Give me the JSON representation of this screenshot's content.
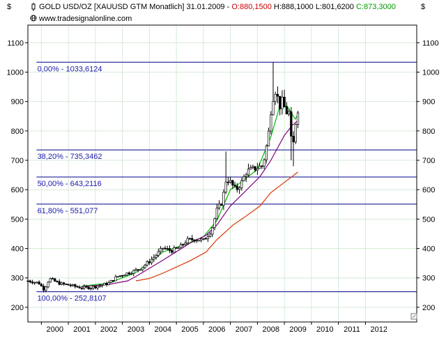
{
  "header": {
    "instrument": "GOLD USD/OZ [XAUUSD GTM  Monatlich]",
    "date": "31.01.2009",
    "open_text": "O:880,1500",
    "high_text": "H:888,1000",
    "low_text": "L:801,6200",
    "close_text": "C:873,3000",
    "source": "www.tradesignalonline.com",
    "currency_left": "$",
    "currency_right": "$",
    "icons": [
      "candlestick-icon",
      "globe-icon"
    ]
  },
  "colors": {
    "open": "#cc0000",
    "close": "#009900",
    "fib_line": "#00008b",
    "fib_label": "#1a1aaa",
    "ma_short": "#00bb00",
    "ma_mid": "#800080",
    "ma_long": "#dd3300",
    "candle": "#000000",
    "grid": "#d6ead6"
  },
  "chart_data": {
    "type": "candlestick",
    "title": "GOLD USD/OZ [XAUUSD GTM  Monatlich]",
    "interval": "monthly",
    "ylim": [
      150,
      1160
    ],
    "xlim": [
      1999.0,
      2013.4
    ],
    "y_ticks": [
      200,
      300,
      400,
      500,
      600,
      700,
      800,
      900,
      1000,
      1100
    ],
    "x_ticks": [
      "2000",
      "2001",
      "2002",
      "2003",
      "2004",
      "2005",
      "2006",
      "2007",
      "2008",
      "2009",
      "2010",
      "2011",
      "2012"
    ],
    "grid": true,
    "fibonacci_levels": [
      {
        "label": "0,00% - 1033,6124",
        "value": 1033.6124
      },
      {
        "label": "38,20% - 735,3462",
        "value": 735.3462
      },
      {
        "label": "50,00% - 643,2116",
        "value": 643.2116
      },
      {
        "label": "61,80% - 551,077",
        "value": 551.077
      },
      {
        "label": "100,00% - 252,8107",
        "value": 252.8107
      }
    ],
    "price_path": [
      [
        1999.0,
        290
      ],
      [
        1999.4,
        283
      ],
      [
        1999.6,
        260
      ],
      [
        1999.8,
        298
      ],
      [
        2000.0,
        288
      ],
      [
        2000.2,
        280
      ],
      [
        2000.5,
        276
      ],
      [
        2000.9,
        268
      ],
      [
        2001.2,
        266
      ],
      [
        2001.6,
        272
      ],
      [
        2002.0,
        282
      ],
      [
        2002.3,
        304
      ],
      [
        2002.6,
        314
      ],
      [
        2002.9,
        322
      ],
      [
        2003.2,
        334
      ],
      [
        2003.5,
        356
      ],
      [
        2003.8,
        382
      ],
      [
        2004.0,
        402
      ],
      [
        2004.3,
        392
      ],
      [
        2004.6,
        402
      ],
      [
        2004.9,
        428
      ],
      [
        2005.2,
        432
      ],
      [
        2005.5,
        428
      ],
      [
        2005.8,
        462
      ],
      [
        2006.0,
        530
      ],
      [
        2006.2,
        560
      ],
      [
        2006.35,
        640
      ],
      [
        2006.5,
        625
      ],
      [
        2006.7,
        598
      ],
      [
        2006.9,
        622
      ],
      [
        2007.1,
        662
      ],
      [
        2007.4,
        672
      ],
      [
        2007.7,
        682
      ],
      [
        2007.9,
        780
      ],
      [
        2008.0,
        870
      ],
      [
        2008.1,
        925
      ],
      [
        2008.2,
        945
      ],
      [
        2008.3,
        880
      ],
      [
        2008.45,
        905
      ],
      [
        2008.55,
        855
      ],
      [
        2008.65,
        880
      ],
      [
        2008.75,
        770
      ],
      [
        2008.82,
        745
      ],
      [
        2008.9,
        820
      ],
      [
        2009.0,
        875
      ]
    ],
    "moving_averages": [
      {
        "color": "#00bb00",
        "points": [
          [
            2001.0,
            272
          ],
          [
            2002.0,
            282
          ],
          [
            2003.0,
            318
          ],
          [
            2004.0,
            388
          ],
          [
            2005.0,
            420
          ],
          [
            2005.5,
            440
          ],
          [
            2006.0,
            495
          ],
          [
            2006.5,
            600
          ],
          [
            2007.0,
            632
          ],
          [
            2007.5,
            670
          ],
          [
            2008.0,
            780
          ],
          [
            2008.3,
            875
          ],
          [
            2008.6,
            885
          ],
          [
            2008.9,
            840
          ],
          [
            2009.0,
            856
          ]
        ]
      },
      {
        "color": "#800080",
        "points": [
          [
            2001.0,
            270
          ],
          [
            2002.0,
            278
          ],
          [
            2002.7,
            290
          ],
          [
            2003.0,
            305
          ],
          [
            2004.0,
            360
          ],
          [
            2005.0,
            418
          ],
          [
            2005.6,
            445
          ],
          [
            2006.0,
            480
          ],
          [
            2006.5,
            545
          ],
          [
            2007.0,
            590
          ],
          [
            2007.6,
            645
          ],
          [
            2008.0,
            700
          ],
          [
            2008.5,
            785
          ],
          [
            2008.8,
            820
          ],
          [
            2009.0,
            835
          ]
        ]
      },
      {
        "color": "#dd3300",
        "points": [
          [
            2003.0,
            290
          ],
          [
            2003.5,
            298
          ],
          [
            2004.0,
            316
          ],
          [
            2005.0,
            358
          ],
          [
            2005.6,
            388
          ],
          [
            2006.0,
            430
          ],
          [
            2006.6,
            480
          ],
          [
            2007.0,
            505
          ],
          [
            2007.6,
            545
          ],
          [
            2008.0,
            590
          ],
          [
            2008.5,
            625
          ],
          [
            2009.0,
            660
          ]
        ]
      }
    ]
  }
}
